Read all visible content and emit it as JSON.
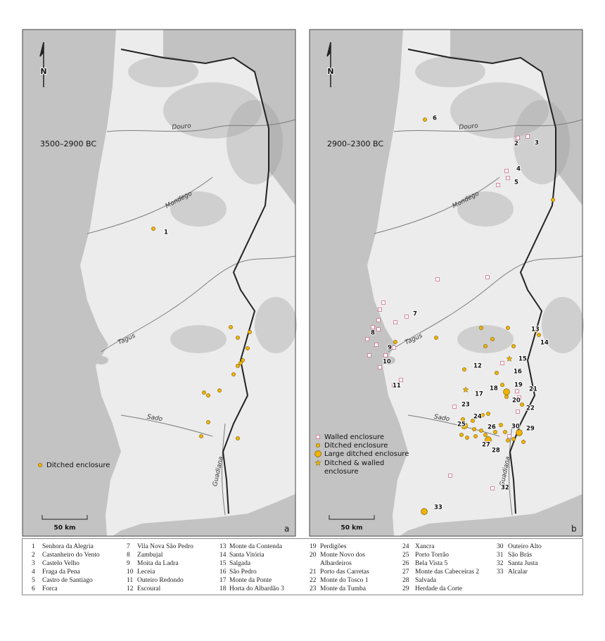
{
  "panels": [
    {
      "period": "3500–2900 BC",
      "letter": "a",
      "north": "N",
      "scale": "50 km",
      "rivers": [
        "Douro",
        "Mondego",
        "Tagus",
        "Sado",
        "Guadiana"
      ],
      "site_labels": [
        "1"
      ],
      "legend": [
        {
          "label": "Ditched enclosure"
        }
      ]
    },
    {
      "period": "2900–2300 BC",
      "letter": "b",
      "north": "N",
      "scale": "50 km",
      "rivers": [
        "Douro",
        "Mondego",
        "Tagus",
        "Sado",
        "Guadiana"
      ],
      "site_labels": [
        "6",
        "2",
        "3",
        "4",
        "5",
        "7",
        "8",
        "9",
        "10",
        "11",
        "12",
        "13",
        "14",
        "15",
        "16",
        "17",
        "18",
        "19",
        "20",
        "21",
        "22",
        "23",
        "24",
        "25",
        "26",
        "27",
        "28",
        "29",
        "30",
        "32",
        "33"
      ],
      "legend": [
        {
          "label": "Walled enclosure"
        },
        {
          "label": "Ditched enclosure"
        },
        {
          "label": "Large ditched enclosure"
        },
        {
          "lines": [
            "Ditched & walled",
            "enclosure"
          ]
        }
      ]
    }
  ],
  "key": [
    {
      "number": "1",
      "name": "Senhora da Alegria"
    },
    {
      "number": "2",
      "name": "Castanheiro do Vento"
    },
    {
      "number": "3",
      "name": "Castelo Velho"
    },
    {
      "number": "4",
      "name": "Fraga da Pena"
    },
    {
      "number": "5",
      "name": "Castro de Santiago"
    },
    {
      "number": "6",
      "name": "Forca"
    },
    {
      "number": "7",
      "name": "Vila Nova São Pedro"
    },
    {
      "number": "8",
      "name": "Zambujal"
    },
    {
      "number": "9",
      "name": "Moita da Ladra"
    },
    {
      "number": "10",
      "name": "Leceia"
    },
    {
      "number": "11",
      "name": "Outeiro Redondo"
    },
    {
      "number": "12",
      "name": "Escoural"
    },
    {
      "number": "13",
      "name": "Monte da Contenda"
    },
    {
      "number": "14",
      "name": "Santa Vitória"
    },
    {
      "number": "15",
      "name": "Salgada"
    },
    {
      "number": "16",
      "name": "São Pedro"
    },
    {
      "number": "17",
      "name": "Monte da Ponte"
    },
    {
      "number": "18",
      "name": "Horta do Albardão 3"
    },
    {
      "number": "19",
      "name": "Perdigões"
    },
    {
      "number": "20",
      "lines": [
        "Monte Novo dos",
        "Albardeiros"
      ]
    },
    {
      "number": "21",
      "name": "Porto das Carretas"
    },
    {
      "number": "22",
      "name": "Monte do Tosco 1"
    },
    {
      "number": "23",
      "name": "Monte da Tumba"
    },
    {
      "number": "24",
      "name": "Xancra"
    },
    {
      "number": "25",
      "name": "Porto Torrão"
    },
    {
      "number": "26",
      "name": "Bela Vista 5"
    },
    {
      "number": "27",
      "name": "Monte das Cabeceiras 2"
    },
    {
      "number": "28",
      "name": "Salvada"
    },
    {
      "number": "29",
      "name": "Herdade da Corte"
    },
    {
      "number": "30",
      "name": "Outeiro Alto"
    },
    {
      "number": "31",
      "name": "São Brás"
    },
    {
      "number": "32",
      "name": "Santa Justa"
    },
    {
      "number": "33",
      "name": "Alcalar"
    }
  ]
}
